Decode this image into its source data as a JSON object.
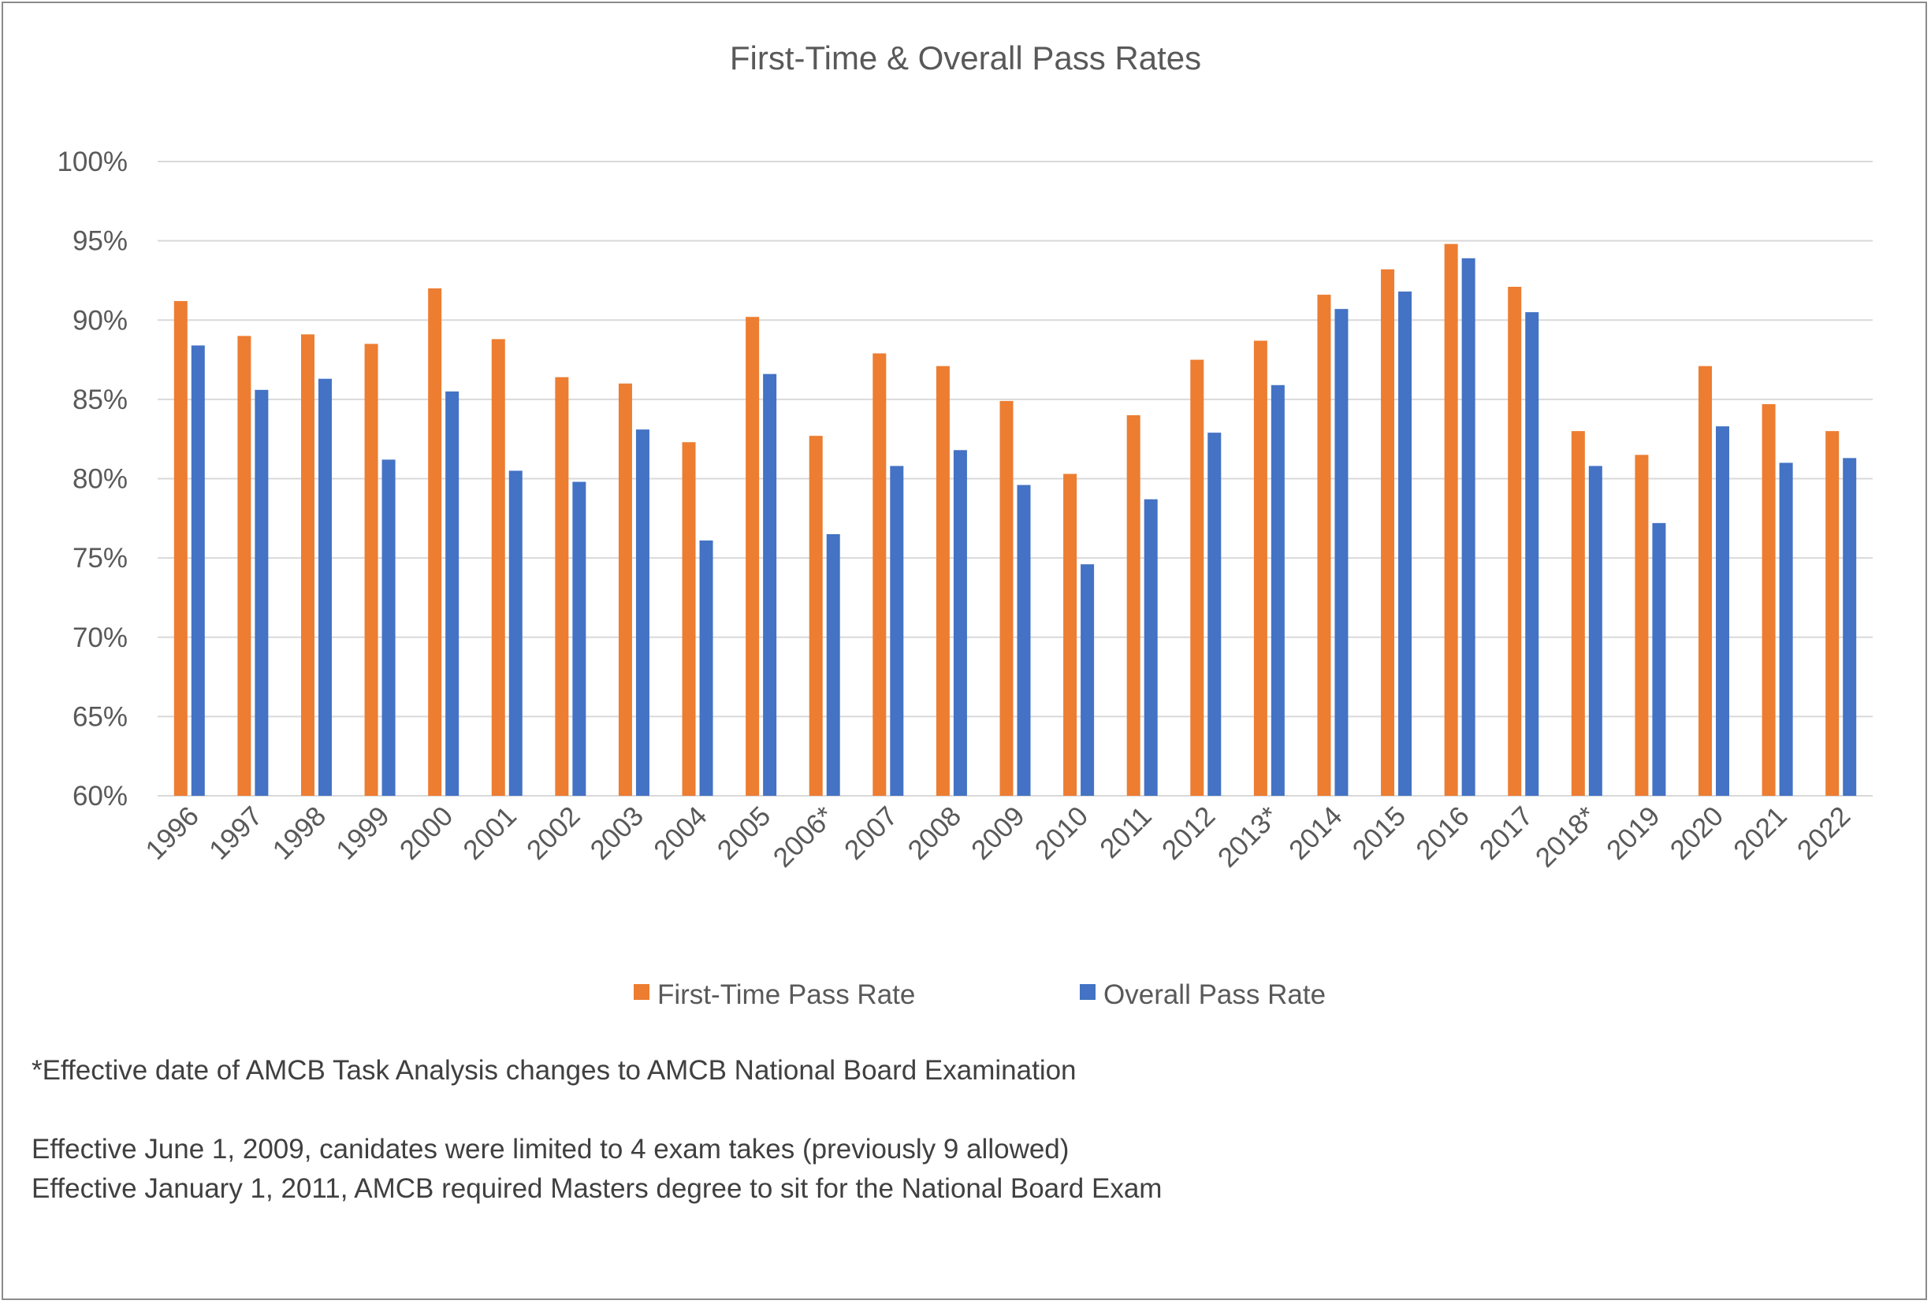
{
  "chart_data": {
    "type": "bar",
    "title": "First-Time & Overall Pass Rates",
    "xlabel": "",
    "ylabel": "",
    "ylim": [
      60,
      100
    ],
    "y_ticks": [
      "60%",
      "65%",
      "70%",
      "75%",
      "80%",
      "85%",
      "90%",
      "95%",
      "100%"
    ],
    "grid": true,
    "legend_position": "bottom",
    "categories": [
      "1996",
      "1997",
      "1998",
      "1999",
      "2000",
      "2001",
      "2002",
      "2003",
      "2004",
      "2005",
      "2006*",
      "2007",
      "2008",
      "2009",
      "2010",
      "2011",
      "2012",
      "2013*",
      "2014",
      "2015",
      "2016",
      "2017",
      "2018*",
      "2019",
      "2020",
      "2021",
      "2022"
    ],
    "series": [
      {
        "name": "First-Time Pass Rate",
        "color": "#ED7D31",
        "values": [
          91.2,
          89.0,
          89.1,
          88.5,
          92.0,
          88.8,
          86.4,
          86.0,
          82.3,
          90.2,
          82.7,
          87.9,
          87.1,
          84.9,
          80.3,
          84.0,
          87.5,
          88.7,
          91.6,
          93.2,
          94.8,
          92.1,
          83.0,
          81.5,
          87.1,
          84.7,
          83.0
        ]
      },
      {
        "name": "Overall Pass Rate",
        "color": "#4472C4",
        "values": [
          88.4,
          85.6,
          86.3,
          81.2,
          85.5,
          80.5,
          79.8,
          83.1,
          76.1,
          86.6,
          76.5,
          80.8,
          81.8,
          79.6,
          74.6,
          78.7,
          82.9,
          85.9,
          90.7,
          91.8,
          93.9,
          90.5,
          80.8,
          77.2,
          83.3,
          81.0,
          81.3
        ]
      }
    ]
  },
  "notes": {
    "line1": "*Effective date of AMCB Task Analysis changes to AMCB National Board Examination",
    "line2": "Effective June 1, 2009, canidates were limited to 4 exam takes (previously 9 allowed)",
    "line3": "Effective January 1, 2011, AMCB required Masters degree to sit for the National Board Exam"
  }
}
